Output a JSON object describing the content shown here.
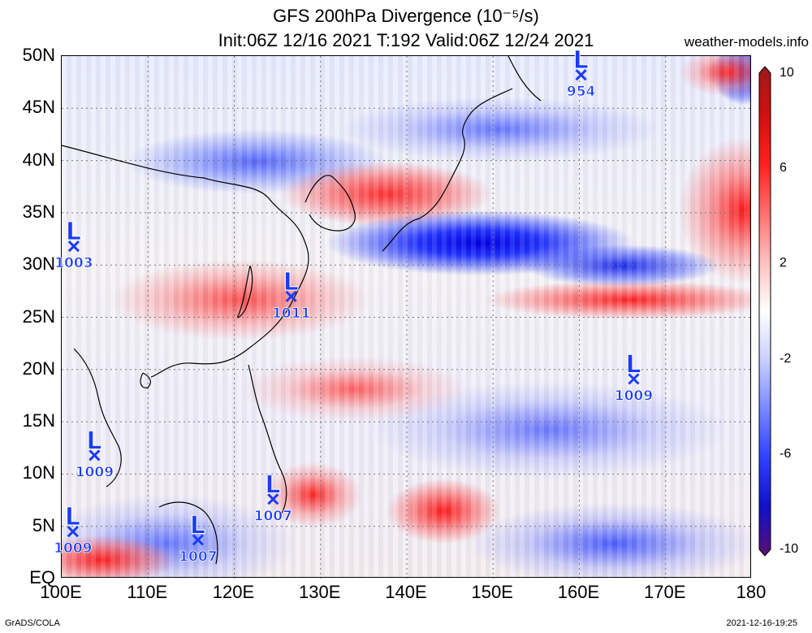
{
  "header": {
    "title_line1": "GFS 200hPa Divergence (10⁻⁵/s)",
    "title_line2": "Init:06Z 12/16 2021 T:192 Valid:06Z 12/24 2021",
    "site": "weather-models.info"
  },
  "footer": {
    "left": "GrADS/COLA",
    "right": "2021-12-16-19:25"
  },
  "axes": {
    "lat_labels": [
      "50N",
      "45N",
      "40N",
      "35N",
      "30N",
      "25N",
      "20N",
      "15N",
      "10N",
      "5N",
      "EQ"
    ],
    "lon_labels": [
      "100E",
      "110E",
      "120E",
      "130E",
      "140E",
      "150E",
      "160E",
      "170E",
      "180"
    ],
    "lat_range": [
      0,
      50
    ],
    "lon_range": [
      100,
      180
    ]
  },
  "colorbar": {
    "labels": [
      "10",
      "6",
      "2",
      "-2",
      "-6",
      "-10"
    ],
    "colors": [
      "#5a1070",
      "#1010c8",
      "#3040ff",
      "#7888ff",
      "#c8d0ff",
      "#ffffff",
      "#ffc0c0",
      "#ff7070",
      "#ff2020",
      "#d01010",
      "#9c1a1a"
    ]
  },
  "lows": [
    {
      "letter": "L",
      "value": "954",
      "lon": 160.2,
      "lat": 48.2
    },
    {
      "letter": "L",
      "value": "1003",
      "lon": 101.4,
      "lat": 31.8
    },
    {
      "letter": "L",
      "value": "1011",
      "lon": 126.6,
      "lat": 27.0
    },
    {
      "letter": "L",
      "value": "1009",
      "lon": 166.3,
      "lat": 19.1
    },
    {
      "letter": "L",
      "value": "1009",
      "lon": 103.8,
      "lat": 11.8
    },
    {
      "letter": "L",
      "value": "1007",
      "lon": 124.5,
      "lat": 7.6
    },
    {
      "letter": "L",
      "value": "1009",
      "lon": 101.3,
      "lat": 4.5
    },
    {
      "letter": "L",
      "value": "1007",
      "lon": 115.8,
      "lat": 3.7
    }
  ],
  "colors": {
    "low_marker": "#1a3cff",
    "coast": "#000000"
  }
}
